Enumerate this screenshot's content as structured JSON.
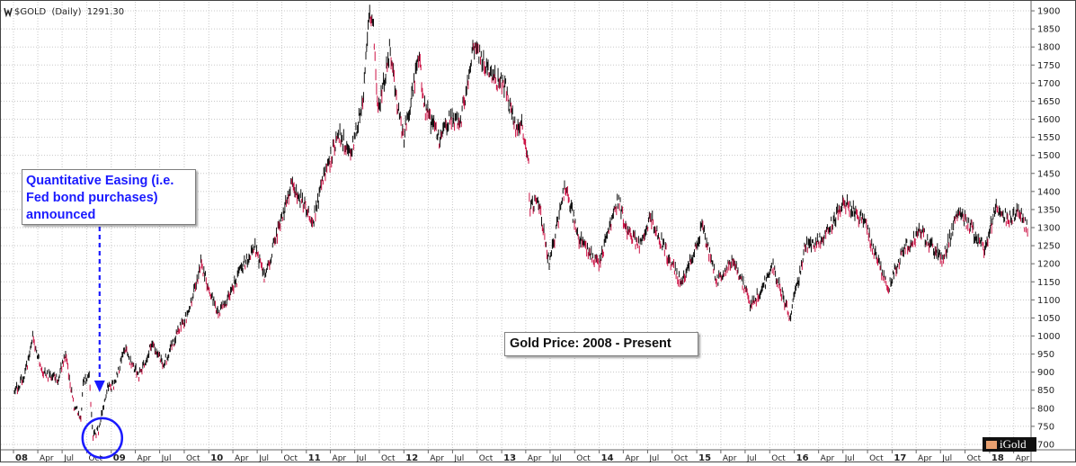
{
  "header": {
    "icon": "chart-icon",
    "symbol": "$GOLD",
    "period": "(Daily)",
    "last_value": "1291.30"
  },
  "callouts": {
    "qe_lines": [
      "Quantitative Easing (i.e.",
      "Fed bond purchases)",
      "announced"
    ],
    "chart_title": "Gold Price: 2008 - Present"
  },
  "branding": {
    "logo_text": "iGold"
  },
  "colors": {
    "price_bar": "#111111",
    "down_bar": "#cc1144",
    "grid": "#c8c8c8",
    "annotation": "#1a1aff",
    "axis_text": "#222222"
  },
  "chart_data": {
    "type": "line",
    "series": [
      {
        "x": [
          "2008-01-02",
          "2008-02-15",
          "2008-03-14",
          "2008-04-15",
          "2008-05-15",
          "2008-06-15",
          "2008-07-15",
          "2008-08-15",
          "2008-09-10",
          "2008-09-17",
          "2008-10-10",
          "2008-10-24",
          "2008-11-14",
          "2008-12-15",
          "2009-01-15",
          "2009-02-20",
          "2009-03-15",
          "2009-04-15",
          "2009-06-01",
          "2009-07-15",
          "2009-09-01",
          "2009-10-15",
          "2009-12-02",
          "2010-02-05",
          "2010-03-15",
          "2010-05-15",
          "2010-06-20",
          "2010-07-28",
          "2010-08-31",
          "2010-10-15",
          "2010-11-09",
          "2011-01-28",
          "2011-03-01",
          "2011-05-01",
          "2011-06-15",
          "2011-07-15",
          "2011-08-01",
          "2011-08-22",
          "2011-09-06",
          "2011-09-26",
          "2011-11-08",
          "2011-12-29",
          "2012-02-28",
          "2012-03-15",
          "2012-05-16",
          "2012-06-15",
          "2012-08-01",
          "2012-09-15",
          "2012-10-05",
          "2012-11-15",
          "2013-01-15",
          "2013-02-20",
          "2013-03-15",
          "2013-04-12",
          "2013-04-15",
          "2013-05-15",
          "2013-06-28",
          "2013-08-27",
          "2013-10-15",
          "2013-12-31",
          "2014-03-14",
          "2014-04-15",
          "2014-06-01",
          "2014-07-10",
          "2014-09-15",
          "2014-11-06",
          "2015-01-22",
          "2015-03-17",
          "2015-05-18",
          "2015-07-24",
          "2015-10-14",
          "2015-12-17",
          "2016-02-11",
          "2016-03-15",
          "2016-05-02",
          "2016-07-06",
          "2016-09-15",
          "2016-10-15",
          "2016-12-15",
          "2017-02-15",
          "2017-04-17",
          "2017-07-10",
          "2017-09-08",
          "2017-12-12",
          "2018-01-25",
          "2018-03-15",
          "2018-04-15",
          "2018-05-25"
        ],
        "y": [
          840,
          900,
          1000,
          900,
          890,
          880,
          950,
          800,
          780,
          870,
          900,
          720,
          740,
          850,
          870,
          960,
          930,
          890,
          980,
          920,
          1000,
          1060,
          1200,
          1060,
          1110,
          1200,
          1250,
          1160,
          1250,
          1360,
          1420,
          1320,
          1420,
          1560,
          1510,
          1590,
          1660,
          1880,
          1900,
          1620,
          1790,
          1540,
          1780,
          1640,
          1540,
          1600,
          1600,
          1780,
          1790,
          1720,
          1690,
          1580,
          1600,
          1480,
          1350,
          1380,
          1200,
          1420,
          1270,
          1200,
          1380,
          1290,
          1250,
          1330,
          1220,
          1140,
          1300,
          1150,
          1210,
          1080,
          1190,
          1050,
          1250,
          1250,
          1290,
          1370,
          1320,
          1260,
          1130,
          1240,
          1290,
          1210,
          1350,
          1240,
          1360,
          1320,
          1350,
          1291.3
        ]
      }
    ],
    "xlim": [
      "2008-01-01",
      "2018-06-05"
    ],
    "ylim": [
      685,
      1925
    ],
    "y_ticks": [
      700,
      750,
      800,
      850,
      900,
      950,
      1000,
      1050,
      1100,
      1150,
      1200,
      1250,
      1300,
      1350,
      1400,
      1450,
      1500,
      1550,
      1600,
      1650,
      1700,
      1750,
      1800,
      1850,
      1900
    ],
    "x_ticks": [
      {
        "date": "2008-01-01",
        "label": "08",
        "major": true
      },
      {
        "date": "2008-04-01",
        "label": "Apr",
        "major": false
      },
      {
        "date": "2008-07-01",
        "label": "Jul",
        "major": false
      },
      {
        "date": "2008-10-01",
        "label": "Oct",
        "major": false
      },
      {
        "date": "2009-01-01",
        "label": "09",
        "major": true
      },
      {
        "date": "2009-04-01",
        "label": "Apr",
        "major": false
      },
      {
        "date": "2009-07-01",
        "label": "Jul",
        "major": false
      },
      {
        "date": "2009-10-01",
        "label": "Oct",
        "major": false
      },
      {
        "date": "2010-01-01",
        "label": "10",
        "major": true
      },
      {
        "date": "2010-04-01",
        "label": "Apr",
        "major": false
      },
      {
        "date": "2010-07-01",
        "label": "Jul",
        "major": false
      },
      {
        "date": "2010-10-01",
        "label": "Oct",
        "major": false
      },
      {
        "date": "2011-01-01",
        "label": "11",
        "major": true
      },
      {
        "date": "2011-04-01",
        "label": "Apr",
        "major": false
      },
      {
        "date": "2011-07-01",
        "label": "Jul",
        "major": false
      },
      {
        "date": "2011-10-01",
        "label": "Oct",
        "major": false
      },
      {
        "date": "2012-01-01",
        "label": "12",
        "major": true
      },
      {
        "date": "2012-04-01",
        "label": "Apr",
        "major": false
      },
      {
        "date": "2012-07-01",
        "label": "Jul",
        "major": false
      },
      {
        "date": "2012-10-01",
        "label": "Oct",
        "major": false
      },
      {
        "date": "2013-01-01",
        "label": "13",
        "major": true
      },
      {
        "date": "2013-04-01",
        "label": "Apr",
        "major": false
      },
      {
        "date": "2013-07-01",
        "label": "Jul",
        "major": false
      },
      {
        "date": "2013-10-01",
        "label": "Oct",
        "major": false
      },
      {
        "date": "2014-01-01",
        "label": "14",
        "major": true
      },
      {
        "date": "2014-04-01",
        "label": "Apr",
        "major": false
      },
      {
        "date": "2014-07-01",
        "label": "Jul",
        "major": false
      },
      {
        "date": "2014-10-01",
        "label": "Oct",
        "major": false
      },
      {
        "date": "2015-01-01",
        "label": "15",
        "major": true
      },
      {
        "date": "2015-04-01",
        "label": "Apr",
        "major": false
      },
      {
        "date": "2015-07-01",
        "label": "Jul",
        "major": false
      },
      {
        "date": "2015-10-01",
        "label": "Oct",
        "major": false
      },
      {
        "date": "2016-01-01",
        "label": "16",
        "major": true
      },
      {
        "date": "2016-04-01",
        "label": "Apr",
        "major": false
      },
      {
        "date": "2016-07-01",
        "label": "Jul",
        "major": false
      },
      {
        "date": "2016-10-01",
        "label": "Oct",
        "major": false
      },
      {
        "date": "2017-01-01",
        "label": "17",
        "major": true
      },
      {
        "date": "2017-04-01",
        "label": "Apr",
        "major": false
      },
      {
        "date": "2017-07-01",
        "label": "Jul",
        "major": false
      },
      {
        "date": "2017-10-01",
        "label": "Oct",
        "major": false
      },
      {
        "date": "2018-01-01",
        "label": "18",
        "major": true
      },
      {
        "date": "2018-04-01",
        "label": "Apr",
        "major": false
      }
    ],
    "grid": true,
    "annotations": [
      {
        "text": "Quantitative Easing (i.e. Fed bond purchases) announced",
        "target_date": "2008-11-25",
        "target_value": 745,
        "marker": "circle"
      },
      {
        "text": "Gold Price: 2008 - Present"
      }
    ]
  }
}
